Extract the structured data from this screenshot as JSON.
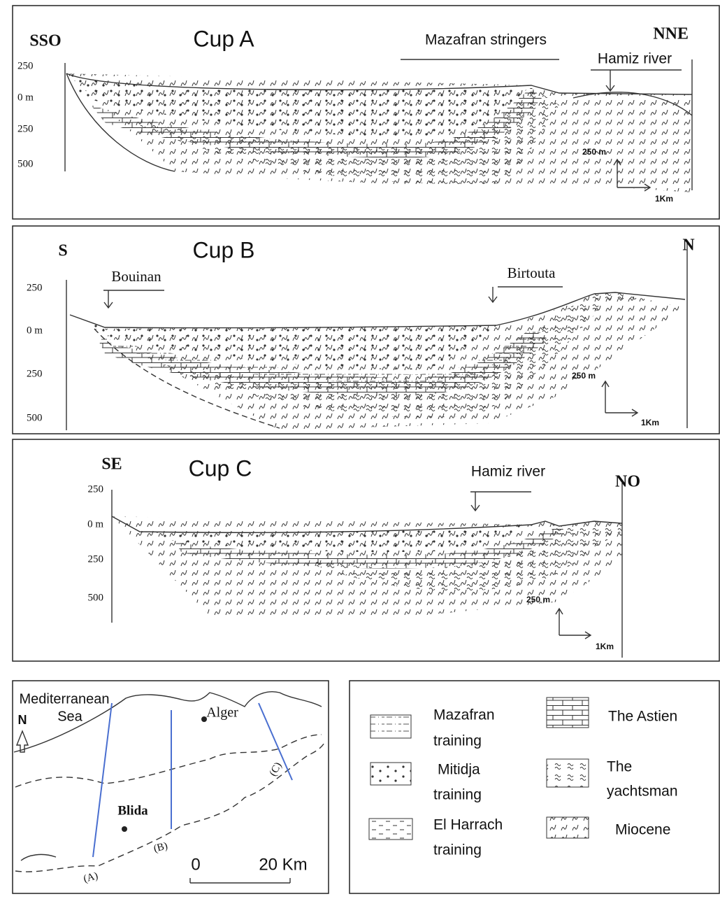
{
  "sections": [
    {
      "title": "Cup A",
      "left": "SSO",
      "right": "NNE",
      "depth_labels": [
        "250",
        "0 m",
        "250",
        "500"
      ],
      "annotations": [
        "Mazafran stringers",
        "Hamiz river"
      ],
      "scale": {
        "vertical": "250 m",
        "horizontal": "1Km"
      }
    },
    {
      "title": "Cup B",
      "left": "S",
      "right": "N",
      "depth_labels": [
        "250",
        "0 m",
        "250",
        "500"
      ],
      "annotations": [
        "Bouinan",
        "Birtouta"
      ],
      "scale": {
        "vertical": "250 m",
        "horizontal": "1Km"
      }
    },
    {
      "title": "Cup C",
      "left": "SE",
      "right": "NO",
      "depth_labels": [
        "250",
        "0 m",
        "250",
        "500"
      ],
      "annotations": [
        "Hamiz river"
      ],
      "scale": {
        "vertical": "250 m",
        "horizontal": "1Km"
      }
    }
  ],
  "map": {
    "sea_label": [
      "Mediterranean",
      "Sea"
    ],
    "north": "N",
    "cities": [
      "Alger",
      "Blida"
    ],
    "section_labels": [
      "(A)",
      "(B)",
      "(C)"
    ],
    "scale": [
      "0",
      "20 Km"
    ]
  },
  "legend": [
    {
      "label": [
        "Mazafran",
        "training"
      ]
    },
    {
      "label": [
        "Mitidja",
        "training"
      ]
    },
    {
      "label": [
        "El Harrach",
        "training"
      ]
    },
    {
      "label": [
        "The Astien"
      ]
    },
    {
      "label": [
        "The",
        "yachtsman"
      ]
    },
    {
      "label": [
        "Miocene"
      ]
    }
  ]
}
